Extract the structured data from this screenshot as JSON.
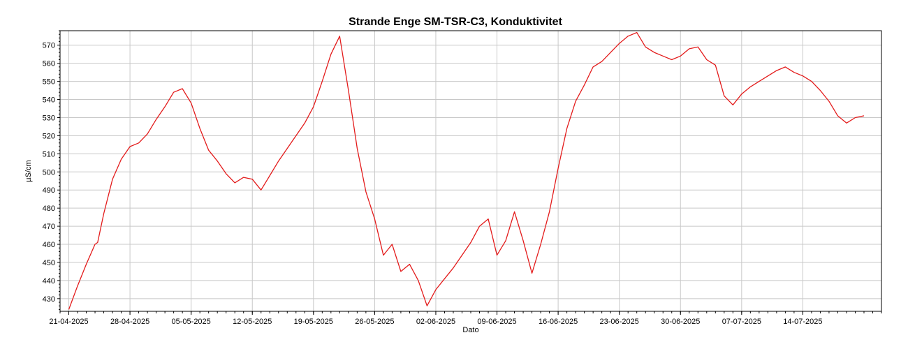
{
  "chart_data": {
    "type": "line",
    "title": "Strande Enge SM-TSR-C3, Konduktivitet",
    "xlabel": "Dato",
    "ylabel": "µS/cm",
    "xlim": [
      "2025-04-20",
      "2025-07-23"
    ],
    "ylim": [
      423,
      578
    ],
    "grid": true,
    "x_ticks": [
      "21-04-2025",
      "28-04-2025",
      "05-05-2025",
      "12-05-2025",
      "19-05-2025",
      "26-05-2025",
      "02-06-2025",
      "09-06-2025",
      "16-06-2025",
      "23-06-2025",
      "30-06-2025",
      "07-07-2025",
      "14-07-2025"
    ],
    "y_ticks": [
      430,
      440,
      450,
      460,
      470,
      480,
      490,
      500,
      510,
      520,
      530,
      540,
      550,
      560,
      570
    ],
    "series_color": "#e31b1b",
    "series": [
      {
        "x": [
          "2025-04-21",
          "2025-04-22",
          "2025-04-23",
          "2025-04-24",
          "2025-04-24",
          "2025-04-25",
          "2025-04-26",
          "2025-04-27",
          "2025-04-28",
          "2025-04-29",
          "2025-04-30",
          "2025-05-01",
          "2025-05-02",
          "2025-05-03",
          "2025-05-04",
          "2025-05-05",
          "2025-05-06",
          "2025-05-07",
          "2025-05-08",
          "2025-05-09",
          "2025-05-10",
          "2025-05-11",
          "2025-05-12",
          "2025-05-13",
          "2025-05-14",
          "2025-05-15",
          "2025-05-16",
          "2025-05-17",
          "2025-05-18",
          "2025-05-19",
          "2025-05-20",
          "2025-05-21",
          "2025-05-22",
          "2025-05-23",
          "2025-05-24",
          "2025-05-25",
          "2025-05-26",
          "2025-05-27",
          "2025-05-28",
          "2025-05-29",
          "2025-05-30",
          "2025-05-31",
          "2025-06-01",
          "2025-06-02",
          "2025-06-03",
          "2025-06-04",
          "2025-06-05",
          "2025-06-06",
          "2025-06-07",
          "2025-06-08",
          "2025-06-09",
          "2025-06-10",
          "2025-06-11",
          "2025-06-12",
          "2025-06-13",
          "2025-06-14",
          "2025-06-15",
          "2025-06-16",
          "2025-06-17",
          "2025-06-18",
          "2025-06-19",
          "2025-06-20",
          "2025-06-21",
          "2025-06-22",
          "2025-06-23",
          "2025-06-24",
          "2025-06-25",
          "2025-06-26",
          "2025-06-27",
          "2025-06-28",
          "2025-06-29",
          "2025-06-30",
          "2025-07-01",
          "2025-07-02",
          "2025-07-03",
          "2025-07-04",
          "2025-07-05",
          "2025-07-06",
          "2025-07-07",
          "2025-07-08",
          "2025-07-09",
          "2025-07-10",
          "2025-07-11",
          "2025-07-12",
          "2025-07-13",
          "2025-07-14",
          "2025-07-15",
          "2025-07-16",
          "2025-07-17",
          "2025-07-18",
          "2025-07-19",
          "2025-07-20",
          "2025-07-21"
        ],
        "y": [
          424,
          437,
          449,
          460,
          461,
          477,
          496,
          507,
          514,
          516,
          521,
          529,
          536,
          544,
          546,
          538,
          524,
          512,
          506,
          499,
          494,
          497,
          496,
          490,
          498,
          506,
          513,
          520,
          527,
          536,
          550,
          565,
          575,
          545,
          513,
          489,
          474,
          454,
          460,
          445,
          449,
          440,
          426,
          435,
          441,
          447,
          454,
          461,
          470,
          474,
          454,
          462,
          478,
          462,
          444,
          460,
          478,
          502,
          524,
          539,
          548,
          558,
          561,
          566,
          571,
          575,
          577,
          569,
          566,
          564,
          562,
          564,
          568,
          569,
          562,
          559,
          542,
          537,
          543,
          547,
          550,
          553,
          556,
          558,
          555,
          553,
          550,
          545,
          539,
          531,
          527,
          530,
          531
        ]
      }
    ]
  }
}
